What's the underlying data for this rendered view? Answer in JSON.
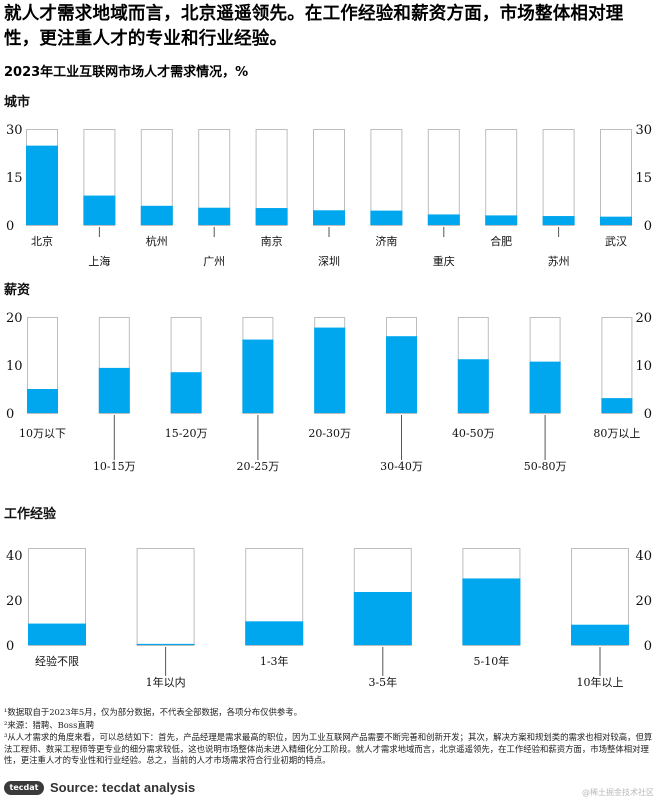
{
  "headline": "就人才需求地域而言，北京遥遥领先。在工作经验和薪资方面，市场整体相对理性，更注重人才的专业和行业经验。",
  "subtitle": "2023年工业互联网市场人才需求情况，%",
  "bar_color": "#00a7ee",
  "chart_data": [
    {
      "type": "bar",
      "title": "城市",
      "categories": [
        "北京",
        "上海",
        "杭州",
        "广州",
        "南京",
        "深圳",
        "济南",
        "重庆",
        "合肥",
        "苏州",
        "武汉"
      ],
      "values": [
        24.8,
        9.2,
        6.0,
        5.4,
        5.3,
        4.6,
        4.5,
        3.3,
        3.0,
        2.8,
        2.6
      ],
      "ylim": [
        0,
        30
      ],
      "yticks": [
        "0",
        "15",
        "30"
      ]
    },
    {
      "type": "bar",
      "title": "薪资",
      "categories": [
        "10万以下",
        "10-15万",
        "15-20万",
        "20-25万",
        "20-30万",
        "30-40万",
        "40-50万",
        "50-80万",
        "80万以上"
      ],
      "values": [
        5,
        9.4,
        8.5,
        15.3,
        17.8,
        16.0,
        11.2,
        10.7,
        3.1
      ],
      "ylim": [
        0,
        20
      ],
      "yticks": [
        "0",
        "10",
        "20"
      ]
    },
    {
      "type": "bar",
      "title": "工作经验",
      "categories": [
        "经验不限",
        "1年以内",
        "1-3年",
        "3-5年",
        "5-10年",
        "10年以上"
      ],
      "values": [
        9.5,
        0.5,
        10.5,
        23.5,
        29.5,
        9.0
      ],
      "ylim": [
        0,
        43
      ],
      "yticks": [
        "0",
        "20",
        "40"
      ]
    }
  ],
  "footnotes": {
    "note1": "¹数据取自于2023年5月，仅为部分数据，不代表全部数据，各项分布仅供参考。",
    "note2": "²来源：猎聘、Boss直聘",
    "note3": "³从人才需求的角度来看，可以总结如下：首先，产品经理是需求最高的职位，因为工业互联网产品需要不断完善和创新开发；其次，解决方案和规划类的需求也相对较高，但算法工程师、数采工程师等更专业的细分需求较低，这也说明市场整体尚未进入精细化分工阶段。就人才需求地域而言，北京遥遥领先，在工作经验和薪资方面，市场整体相对理性，更注重人才的专业性和行业经验。总之，当前的人才市场需求符合行业初期的特点。"
  },
  "source": {
    "logo_text": "tecdat",
    "label": "Source: tecdat analysis"
  },
  "watermark": "@稀土掘金技术社区"
}
